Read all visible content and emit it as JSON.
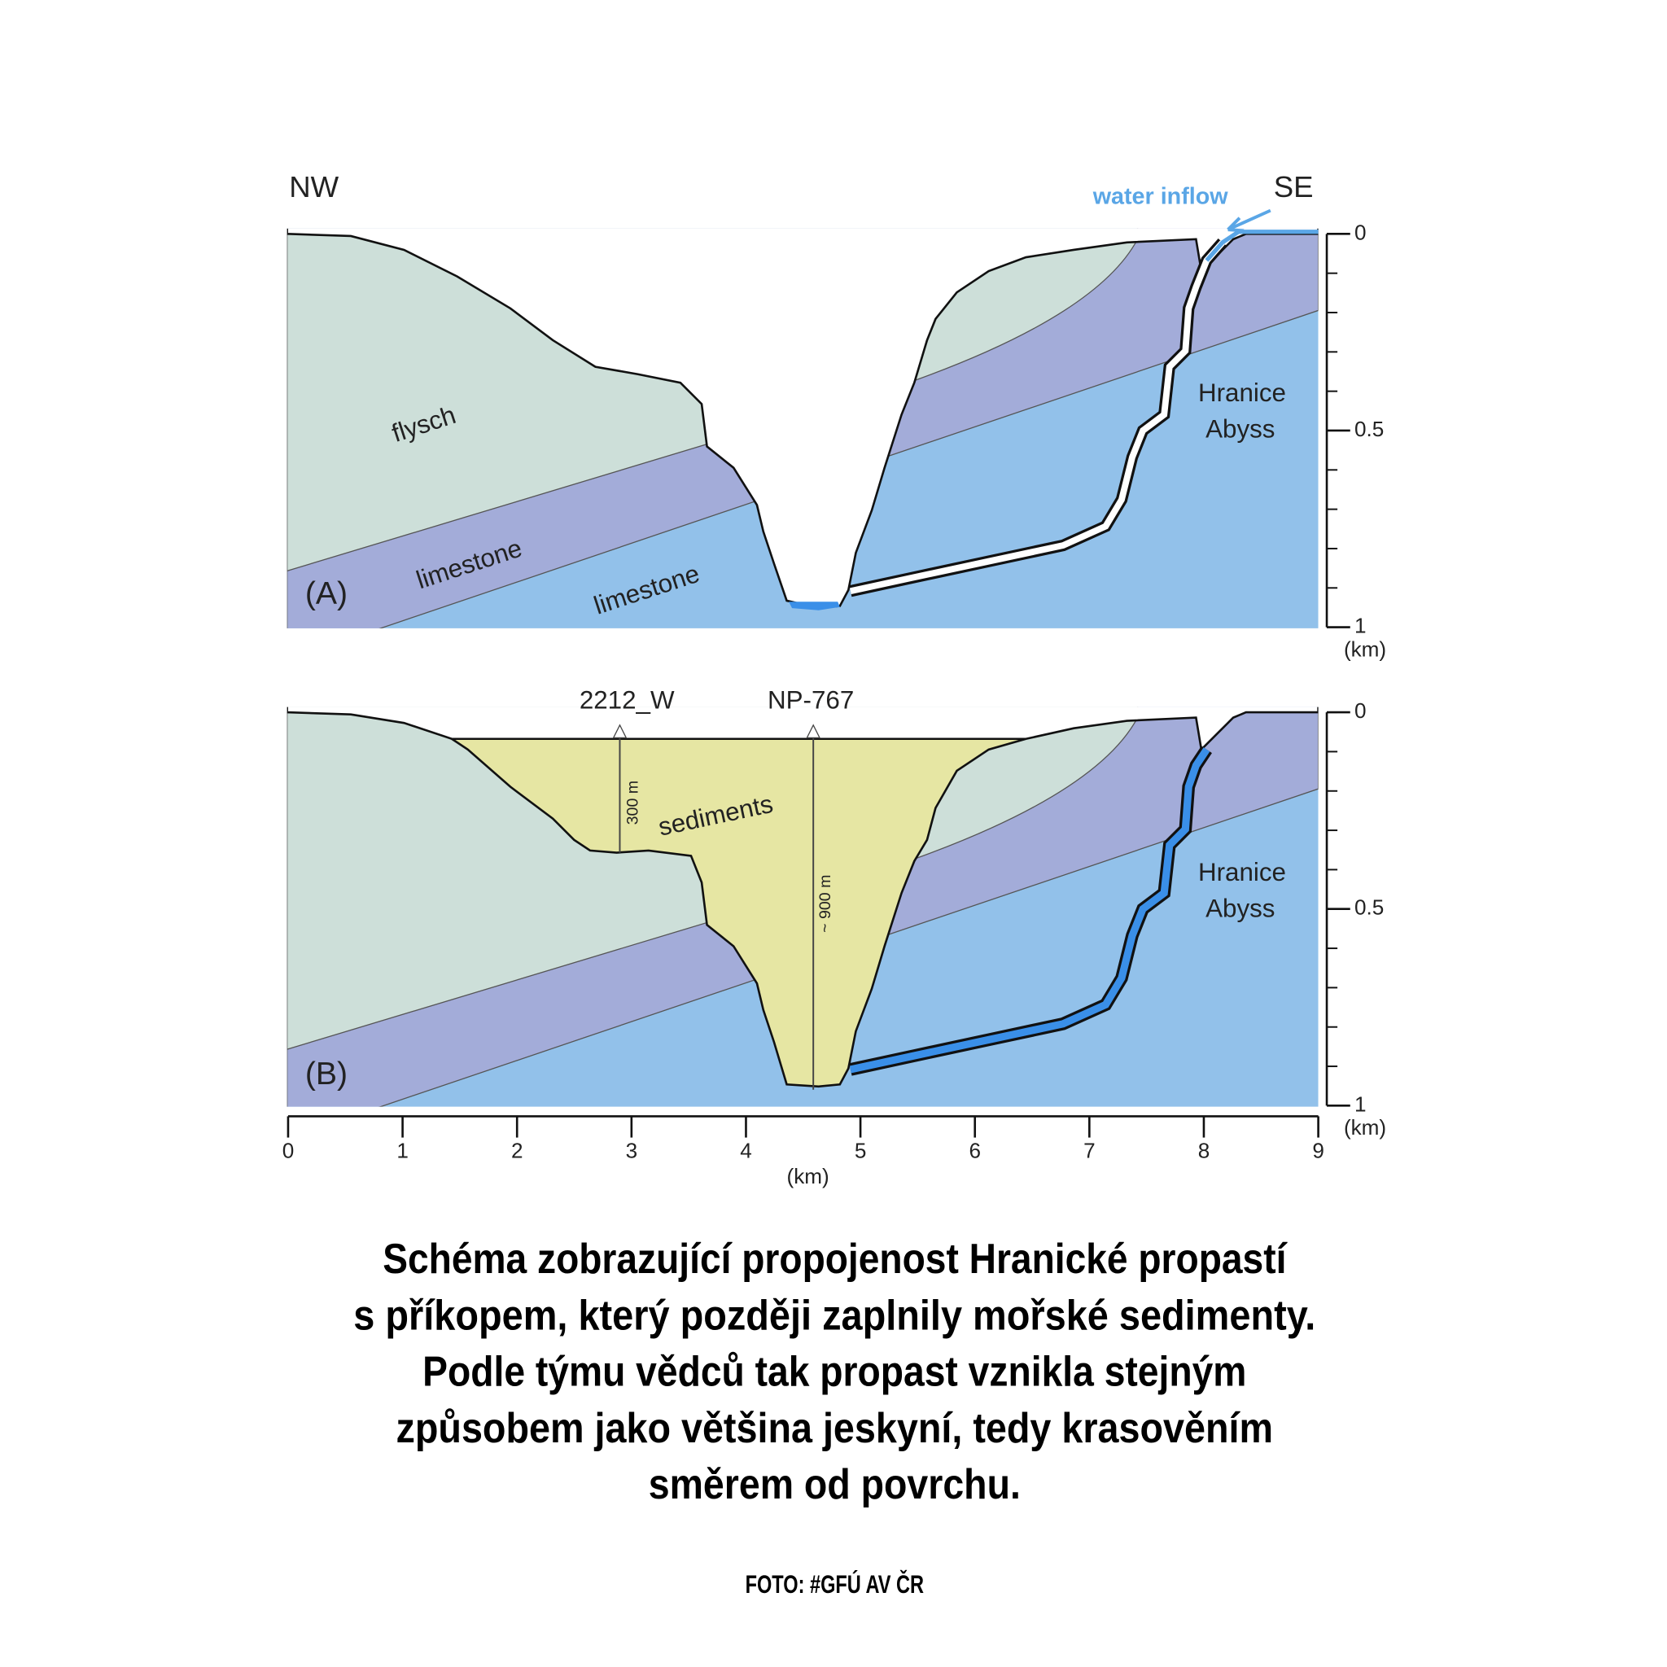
{
  "panel_a": {
    "orientation_left": "NW",
    "orientation_right": "SE",
    "water_inflow": "water inflow",
    "flysch": "flysch",
    "limestone_upper": "limestone",
    "limestone_lower": "limestone",
    "abyss": [
      "Hranice",
      "Abyss"
    ],
    "label": "(A)"
  },
  "panel_b": {
    "label": "(B)",
    "sediments": "sediments",
    "abyss": [
      "Hranice",
      "Abyss"
    ],
    "boreholes": [
      {
        "name": "2212_W",
        "depth": "300 m"
      },
      {
        "name": "NP-767",
        "depth": "~ 900 m"
      }
    ]
  },
  "depth_axis": {
    "ticks": [
      0,
      0.5,
      1
    ],
    "unit": "(km)"
  },
  "distance_axis": {
    "ticks": [
      0,
      1,
      2,
      3,
      4,
      5,
      6,
      7,
      8,
      9
    ],
    "unit": "(km)"
  },
  "caption": [
    "Schéma zobrazující propojenost Hranické propastí",
    "s příkopem, který později zaplnily mořské sedimenty.",
    "Podle týmu vědců tak propast vznikla stejným",
    "způsobem jako většina jeskyní, tedy krasověním",
    "směrem od povrchu."
  ],
  "credit": "FOTO: #GFÚ AV ČR"
}
